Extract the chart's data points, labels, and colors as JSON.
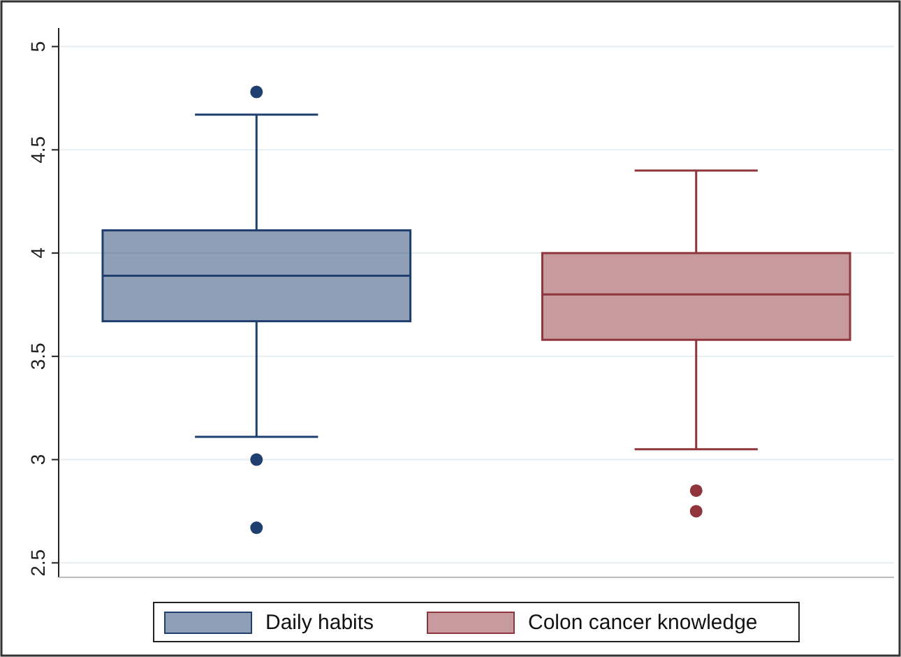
{
  "chart_data": {
    "type": "box",
    "categories": [
      null
    ],
    "ylim": [
      2.43,
      5.09
    ],
    "yticks": [
      2.5,
      3,
      3.5,
      4,
      4.5,
      5
    ],
    "grid": "y",
    "legend": "bottom",
    "series": [
      {
        "name": "Daily habits",
        "color": "#1f3f6e",
        "boxes": [
          {
            "low": 3.11,
            "q1": 3.67,
            "median": 3.89,
            "q3": 4.11,
            "high": 4.67,
            "outliers": [
              4.78,
              3.0,
              2.67
            ]
          }
        ]
      },
      {
        "name": "Colon cancer knowledge",
        "color": "#90353b",
        "boxes": [
          {
            "low": 3.05,
            "q1": 3.58,
            "median": 3.8,
            "q3": 4.0,
            "high": 4.4,
            "outliers": [
              2.85,
              2.75
            ]
          }
        ]
      }
    ]
  }
}
